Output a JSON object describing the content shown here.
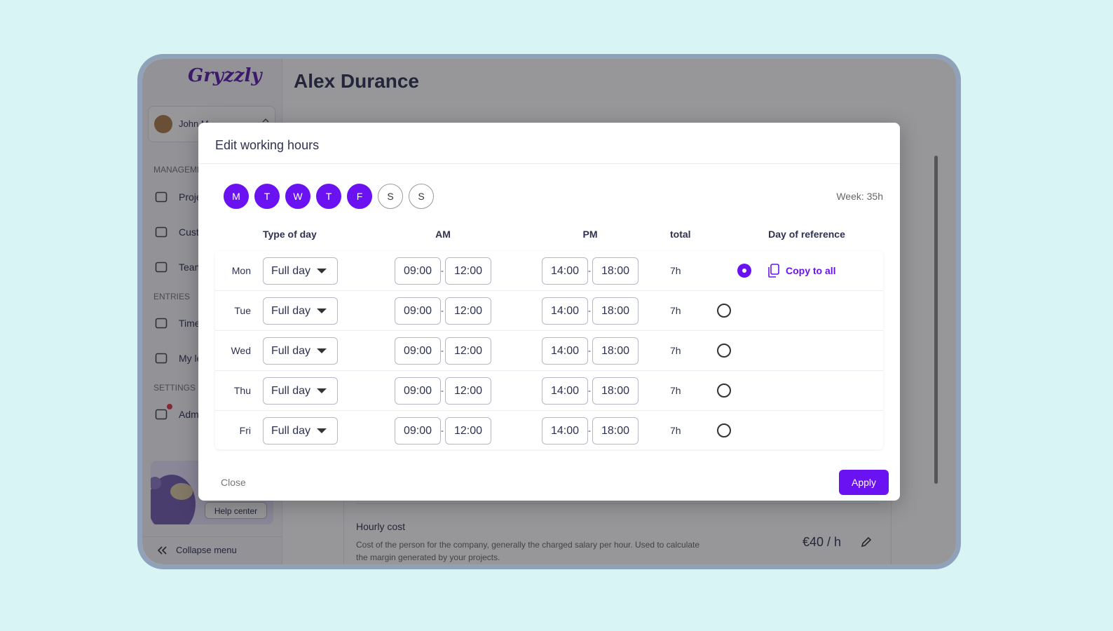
{
  "sidebar": {
    "logo": "Gryzzly",
    "user": "John M",
    "sections": [
      {
        "title": "MANAGEMENT",
        "items": [
          "Projects",
          "Customers",
          "Teams"
        ]
      },
      {
        "title": "ENTRIES",
        "items": [
          "Timesheet",
          "My leaves"
        ]
      },
      {
        "title": "SETTINGS",
        "items": [
          "Admin"
        ]
      }
    ],
    "help": "Help center",
    "collapse": "Collapse menu"
  },
  "main": {
    "title": "Alex Durance",
    "hourly_cost": {
      "label": "Hourly cost",
      "description": "Cost of the person for the company, generally the charged salary per hour. Used to calculate the margin generated by your projects.",
      "value": "€40 / h"
    }
  },
  "modal": {
    "title": "Edit working hours",
    "days": [
      {
        "label": "M",
        "selected": true
      },
      {
        "label": "T",
        "selected": true
      },
      {
        "label": "W",
        "selected": true
      },
      {
        "label": "T",
        "selected": true
      },
      {
        "label": "F",
        "selected": true
      },
      {
        "label": "S",
        "selected": false
      },
      {
        "label": "S",
        "selected": false
      }
    ],
    "week_total": "Week: 35h",
    "columns": [
      "Type of day",
      "AM",
      "PM",
      "total",
      "Day of reference"
    ],
    "separator": "-",
    "rows": [
      {
        "day": "Mon",
        "type": "Full day",
        "am": [
          "09:00",
          "12:00"
        ],
        "pm": [
          "14:00",
          "18:00"
        ],
        "total": "7h",
        "reference": true
      },
      {
        "day": "Tue",
        "type": "Full day",
        "am": [
          "09:00",
          "12:00"
        ],
        "pm": [
          "14:00",
          "18:00"
        ],
        "total": "7h",
        "reference": false
      },
      {
        "day": "Wed",
        "type": "Full day",
        "am": [
          "09:00",
          "12:00"
        ],
        "pm": [
          "14:00",
          "18:00"
        ],
        "total": "7h",
        "reference": false
      },
      {
        "day": "Thu",
        "type": "Full day",
        "am": [
          "09:00",
          "12:00"
        ],
        "pm": [
          "14:00",
          "18:00"
        ],
        "total": "7h",
        "reference": false
      },
      {
        "day": "Fri",
        "type": "Full day",
        "am": [
          "09:00",
          "12:00"
        ],
        "pm": [
          "14:00",
          "18:00"
        ],
        "total": "7h",
        "reference": false
      }
    ],
    "copy_all": "Copy to all",
    "close": "Close",
    "apply": "Apply"
  }
}
